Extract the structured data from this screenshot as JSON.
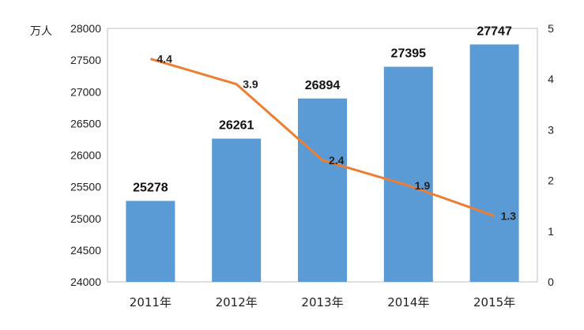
{
  "chart_data": {
    "type": "bar+line",
    "categories": [
      "2011年",
      "2012年",
      "2013年",
      "2014年",
      "2015年"
    ],
    "series": [
      {
        "type": "bar",
        "axis": "left",
        "values": [
          25278,
          26261,
          26894,
          27395,
          27747
        ],
        "labels": [
          "25278",
          "26261",
          "26894",
          "27395",
          "27747"
        ],
        "color": "#5B9BD5"
      },
      {
        "type": "line",
        "axis": "right",
        "values": [
          4.4,
          3.9,
          2.4,
          1.9,
          1.3
        ],
        "labels": [
          "4.4",
          "3.9",
          "2.4",
          "1.9",
          "1.3"
        ],
        "color": "#ED7D31"
      }
    ],
    "left_axis": {
      "unit": "万人",
      "range": [
        24000,
        28000
      ],
      "ticks": [
        "24000",
        "24500",
        "25000",
        "25500",
        "26000",
        "26500",
        "27000",
        "27500",
        "28000"
      ]
    },
    "right_axis": {
      "range": [
        0,
        5
      ],
      "ticks": [
        "0",
        "1",
        "2",
        "3",
        "4",
        "5"
      ]
    },
    "grid": false,
    "legend": "none",
    "title": "",
    "xlabel": "",
    "ylabel": "万人"
  }
}
